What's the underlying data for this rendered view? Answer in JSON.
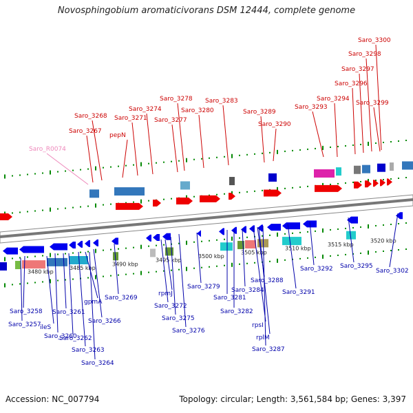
{
  "title": "Novosphingobium aromaticivorans DSM 12444, complete genome",
  "footer": {
    "accession": "Accession: NC_007794",
    "summary": "Topology: circular; Length: 3,561,584 bp; Genes: 3,397"
  },
  "colors": {
    "forward_label": "#cc0000",
    "reverse_label": "#0000aa",
    "rna_label": "#ee88bb",
    "forward_gene": "#ee0000",
    "reverse_gene": "#0000ee",
    "track_dots": "#008800",
    "axis_band": "#888888"
  },
  "scale_labels": [
    "3480 kbp",
    "3485 kbp",
    "3490 kbp",
    "3495 kbp",
    "3500 kbp",
    "3505 kbp",
    "3510 kbp",
    "3515 kbp",
    "3520 kbp"
  ],
  "forward_genes": [
    "Saro_R0074",
    "Saro_3267",
    "Saro_3268",
    "pepN",
    "Saro_3271",
    "Saro_3274",
    "Saro_3277",
    "Saro_3278",
    "Saro_3280",
    "Saro_3283",
    "Saro_3289",
    "Saro_3290",
    "Saro_3293",
    "Saro_3294",
    "Saro_3296",
    "Saro_3297",
    "Saro_3298",
    "Saro_3299",
    "Saro_3300"
  ],
  "reverse_genes": [
    "Saro_3258",
    "Saro_3257",
    "ileS",
    "Saro_3260",
    "Saro_3261",
    "Saro_3262",
    "Saro_3263",
    "Saro_3264",
    "gpmA",
    "Saro_3266",
    "Saro_3269",
    "rpmJ",
    "Saro_3272",
    "Saro_3275",
    "Saro_3276",
    "Saro_3279",
    "Saro_3281",
    "Saro_3282",
    "Saro_3284",
    "Saro_3288",
    "rpsI",
    "rplM",
    "Saro_3287",
    "Saro_3291",
    "Saro_3292",
    "Saro_3295",
    "Saro_3302"
  ]
}
